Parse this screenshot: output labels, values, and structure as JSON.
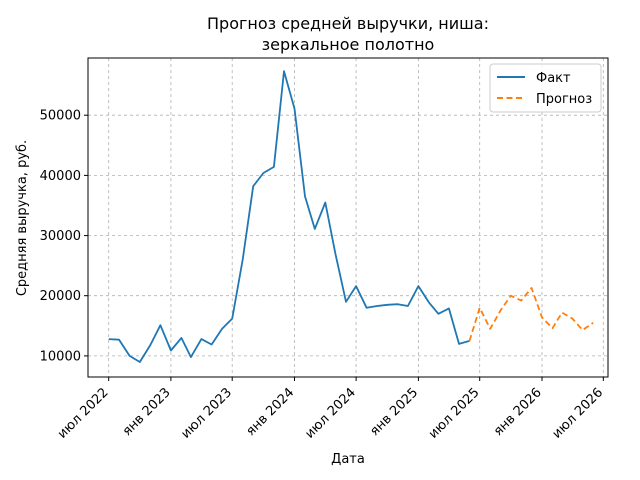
{
  "chart_data": {
    "type": "line",
    "title": [
      "Прогноз средней выручки, ниша:",
      "зеркальное полотно"
    ],
    "xlabel": "Дата",
    "ylabel": "Средняя выручка, руб.",
    "ylim": [
      6500,
      59500
    ],
    "xlim": [
      "2022-05-01",
      "2026-07-15"
    ],
    "grid": true,
    "legend_position": "top-right",
    "x_ticks": [
      {
        "date": "2022-07-01",
        "label": "июл 2022"
      },
      {
        "date": "2023-01-01",
        "label": "янв 2023"
      },
      {
        "date": "2023-07-01",
        "label": "июл 2023"
      },
      {
        "date": "2024-01-01",
        "label": "янв 2024"
      },
      {
        "date": "2024-07-01",
        "label": "июл 2024"
      },
      {
        "date": "2025-01-01",
        "label": "янв 2025"
      },
      {
        "date": "2025-07-01",
        "label": "июл 2025"
      },
      {
        "date": "2026-01-01",
        "label": "янв 2026"
      },
      {
        "date": "2026-07-01",
        "label": "июл 2026"
      }
    ],
    "y_ticks": [
      10000,
      20000,
      30000,
      40000,
      50000
    ],
    "series": [
      {
        "name": "Факт",
        "color": "#1f77b4",
        "style": "solid",
        "points": [
          {
            "x": "2022-07-01",
            "y": 12800
          },
          {
            "x": "2022-08-01",
            "y": 12700
          },
          {
            "x": "2022-09-01",
            "y": 10000
          },
          {
            "x": "2022-10-01",
            "y": 9000
          },
          {
            "x": "2022-11-01",
            "y": 11800
          },
          {
            "x": "2022-12-01",
            "y": 15100
          },
          {
            "x": "2023-01-01",
            "y": 10900
          },
          {
            "x": "2023-02-01",
            "y": 13000
          },
          {
            "x": "2023-03-01",
            "y": 9800
          },
          {
            "x": "2023-04-01",
            "y": 12800
          },
          {
            "x": "2023-05-01",
            "y": 11900
          },
          {
            "x": "2023-06-01",
            "y": 14500
          },
          {
            "x": "2023-07-01",
            "y": 16200
          },
          {
            "x": "2023-08-01",
            "y": 26000
          },
          {
            "x": "2023-09-01",
            "y": 38200
          },
          {
            "x": "2023-10-01",
            "y": 40400
          },
          {
            "x": "2023-11-01",
            "y": 41400
          },
          {
            "x": "2023-12-01",
            "y": 57300
          },
          {
            "x": "2024-01-01",
            "y": 51100
          },
          {
            "x": "2024-02-01",
            "y": 36500
          },
          {
            "x": "2024-03-01",
            "y": 31100
          },
          {
            "x": "2024-04-01",
            "y": 35500
          },
          {
            "x": "2024-05-01",
            "y": 26900
          },
          {
            "x": "2024-06-01",
            "y": 19000
          },
          {
            "x": "2024-07-01",
            "y": 21600
          },
          {
            "x": "2024-08-01",
            "y": 18000
          },
          {
            "x": "2024-09-01",
            "y": 18300
          },
          {
            "x": "2024-10-01",
            "y": 18500
          },
          {
            "x": "2024-11-01",
            "y": 18600
          },
          {
            "x": "2024-12-01",
            "y": 18300
          },
          {
            "x": "2025-01-01",
            "y": 21600
          },
          {
            "x": "2025-02-01",
            "y": 18900
          },
          {
            "x": "2025-03-01",
            "y": 17000
          },
          {
            "x": "2025-04-01",
            "y": 17900
          },
          {
            "x": "2025-05-01",
            "y": 12000
          },
          {
            "x": "2025-06-01",
            "y": 12500
          }
        ]
      },
      {
        "name": "Прогноз",
        "color": "#ff7f0e",
        "style": "dashed",
        "points": [
          {
            "x": "2025-06-01",
            "y": 12500
          },
          {
            "x": "2025-07-01",
            "y": 18000
          },
          {
            "x": "2025-08-01",
            "y": 14500
          },
          {
            "x": "2025-09-01",
            "y": 17600
          },
          {
            "x": "2025-10-01",
            "y": 20000
          },
          {
            "x": "2025-11-01",
            "y": 19200
          },
          {
            "x": "2025-12-01",
            "y": 21300
          },
          {
            "x": "2026-01-01",
            "y": 16400
          },
          {
            "x": "2026-02-01",
            "y": 14600
          },
          {
            "x": "2026-03-01",
            "y": 17200
          },
          {
            "x": "2026-04-01",
            "y": 16200
          },
          {
            "x": "2026-05-01",
            "y": 14300
          },
          {
            "x": "2026-06-01",
            "y": 15500
          }
        ]
      }
    ]
  }
}
